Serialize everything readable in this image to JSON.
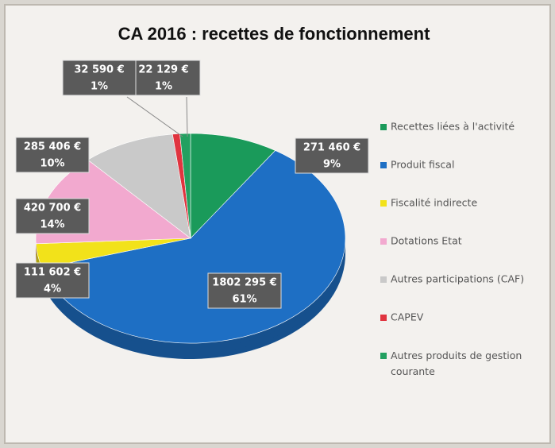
{
  "chart_data": {
    "type": "pie",
    "title": "CA 2016 : recettes de fonctionnement",
    "categories": [
      "Recettes liées à l'activité",
      "Produit fiscal",
      "Fiscalité indirecte",
      "Dotations Etat",
      "Autres participations (CAF)",
      "CAPEV",
      "Autres produits de gestion courante"
    ],
    "values": [
      271460,
      1802295,
      111602,
      420700,
      285406,
      22129,
      32590
    ],
    "value_labels": [
      "271 460 €",
      "1802 295 €",
      "111 602 €",
      "420 700 €",
      "285 406 €",
      "22 129 €",
      "32 590 €"
    ],
    "percents": [
      9,
      61,
      4,
      14,
      10,
      1,
      1
    ],
    "percent_labels": [
      "9%",
      "61%",
      "4%",
      "14%",
      "10%",
      "1%",
      "1%"
    ],
    "colors": [
      "#1a9a5a",
      "#1e6fc4",
      "#f2e21a",
      "#f2a9cf",
      "#c9c9c9",
      "#e0343f",
      "#22a060"
    ],
    "legend": "right"
  }
}
